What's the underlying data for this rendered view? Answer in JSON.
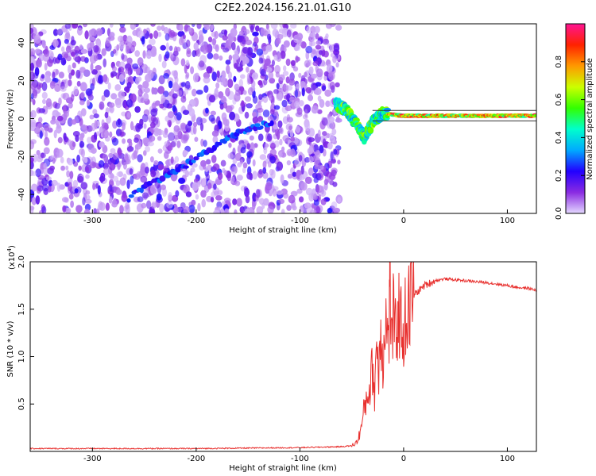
{
  "title": "C2E2.2024.156.21.01.G10",
  "chart_data": [
    {
      "type": "heatmap",
      "xlabel": "Height of straight line (km)",
      "ylabel": "Frequency (Hz)",
      "xlim": [
        -360,
        128
      ],
      "ylim": [
        -50,
        50
      ],
      "xticks": [
        -300,
        -200,
        -100,
        0,
        100
      ],
      "yticks": [
        -40,
        -20,
        0,
        20,
        40
      ],
      "grid": false,
      "colorbar": {
        "label": "Normalized spectral amplitude",
        "range": [
          0,
          1
        ],
        "ticks": [
          0.0,
          0.2,
          0.4,
          0.6,
          0.8
        ],
        "colors": [
          "#e4d8ff",
          "#8a2be2",
          "#2200ff",
          "#00aaff",
          "#00ffcc",
          "#33ff00",
          "#ccff00",
          "#ff9900",
          "#ff2200",
          "#ff1493"
        ]
      },
      "noise_region_x": [
        -360,
        -68
      ],
      "ridge_descending": {
        "x": [
          -265,
          -240,
          -215,
          -190,
          -165,
          -145,
          -125
        ],
        "y": [
          -42,
          -33,
          -26,
          -18,
          -9,
          -5,
          -2
        ]
      },
      "ridge_main": {
        "x": [
          -65,
          -55,
          -45,
          -38,
          -30,
          -20,
          -10,
          0,
          20,
          50,
          80,
          110,
          128
        ],
        "y": [
          8,
          4,
          -3,
          -10,
          -2,
          3,
          2,
          1.5,
          1.5,
          1.5,
          1.5,
          1.5,
          1.5
        ]
      }
    },
    {
      "type": "line",
      "xlabel": "Height of straight line (km)",
      "ylabel": "SNR (10 * v/v)",
      "scale_label": "(x10",
      "scale_exp": "4",
      "scale_close": ")",
      "xlim": [
        -360,
        128
      ],
      "ylim": [
        0,
        2.0
      ],
      "xticks": [
        -300,
        -200,
        -100,
        0,
        100
      ],
      "yticks": [
        0.5,
        1.0,
        1.5,
        2.0
      ],
      "grid": false,
      "color": "#e8302e",
      "series": [
        {
          "x": [
            -360,
            -300,
            -200,
            -100,
            -60,
            -50,
            -45,
            -42,
            -40,
            -38,
            -35,
            -32,
            -30,
            -28,
            -26,
            -24,
            -22,
            -20,
            -18,
            -16,
            -14,
            -13,
            -12,
            -10,
            -8,
            -5,
            -2,
            0,
            3,
            6,
            10,
            15,
            20,
            30,
            40,
            60,
            80,
            100,
            110,
            120,
            128
          ],
          "y": [
            0.03,
            0.03,
            0.03,
            0.04,
            0.05,
            0.06,
            0.1,
            0.2,
            0.3,
            0.45,
            0.6,
            0.7,
            0.9,
            0.6,
            1.2,
            0.8,
            1.4,
            0.9,
            1.5,
            1.2,
            1.3,
            2.0,
            1.1,
            1.4,
            1.2,
            1.5,
            1.3,
            1.3,
            1.45,
            1.55,
            1.65,
            1.7,
            1.75,
            1.8,
            1.82,
            1.8,
            1.78,
            1.75,
            1.73,
            1.72,
            1.7
          ]
        }
      ]
    }
  ]
}
